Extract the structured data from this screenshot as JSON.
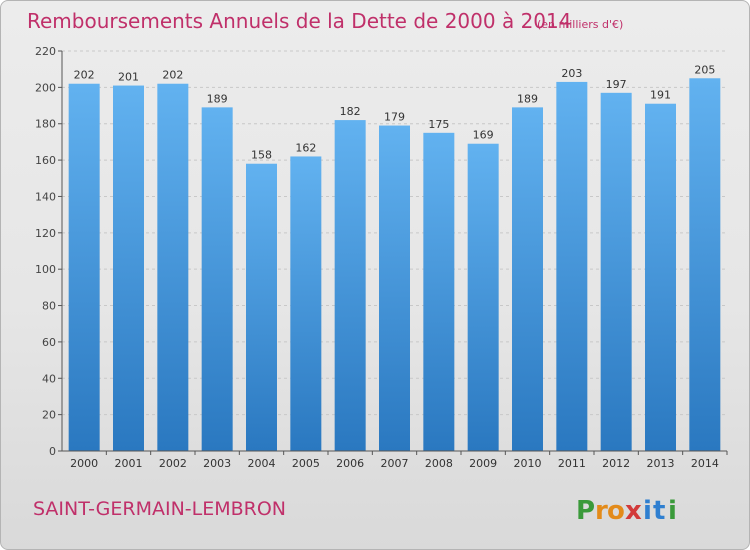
{
  "chart_data": {
    "type": "bar",
    "title": "Remboursements Annuels de la Dette de 2000 à 2014",
    "subtitle": "(en milliers d'€)",
    "categories": [
      "2000",
      "2001",
      "2002",
      "2003",
      "2004",
      "2005",
      "2006",
      "2007",
      "2008",
      "2009",
      "2010",
      "2011",
      "2012",
      "2013",
      "2014"
    ],
    "values": [
      202,
      201,
      202,
      189,
      158,
      162,
      182,
      179,
      175,
      169,
      189,
      203,
      197,
      191,
      205
    ],
    "data_labels": [
      "202",
      "201",
      "202",
      "189",
      "158",
      "162",
      "182",
      "179",
      "175",
      "169",
      "189",
      "203",
      "197",
      "191",
      "205"
    ],
    "y_ticks": [
      "0",
      "20",
      "40",
      "60",
      "80",
      "100",
      "120",
      "140",
      "160",
      "180",
      "200",
      "220"
    ],
    "ylim": [
      0,
      220
    ],
    "grid": true,
    "bar_color": "#3d8fd6",
    "title_color": "#c0306a"
  },
  "footer": {
    "place": "SAINT-GERMAIN-LEMBRON",
    "brand": "Proxiti"
  }
}
